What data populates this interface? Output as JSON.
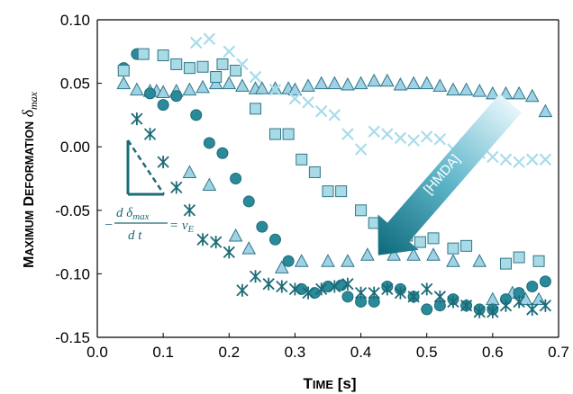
{
  "chart_data": {
    "type": "scatter",
    "title": "",
    "xlabel": "TIME [s]",
    "ylabel": "MAXIMUM DEFORMATION δmax",
    "xlim": [
      0.0,
      0.7
    ],
    "ylim": [
      -0.15,
      0.1
    ],
    "xticks": [
      "0.0",
      "0.1",
      "0.2",
      "0.3",
      "0.4",
      "0.5",
      "0.6",
      "0.7"
    ],
    "yticks": [
      "0.10",
      "0.05",
      "0.00",
      "-0.05",
      "-0.10",
      "-0.15"
    ],
    "xtick_values": [
      0,
      0.1,
      0.2,
      0.3,
      0.4,
      0.5,
      0.6,
      0.7
    ],
    "ytick_values": [
      0.1,
      0.05,
      0.0,
      -0.05,
      -0.1,
      -0.15
    ],
    "grid": false,
    "legend": "none",
    "series": [
      {
        "marker": "triangle",
        "fill": "#9fd2e4",
        "stroke": "#2f7688",
        "points": [
          [
            0.04,
            0.05
          ],
          [
            0.06,
            0.045
          ],
          [
            0.08,
            0.044
          ],
          [
            0.09,
            0.044
          ],
          [
            0.1,
            0.043
          ],
          [
            0.12,
            0.044
          ],
          [
            0.14,
            0.045
          ],
          [
            0.16,
            0.047
          ],
          [
            0.18,
            0.05
          ],
          [
            0.2,
            0.05
          ],
          [
            0.22,
            0.048
          ],
          [
            0.24,
            0.046
          ],
          [
            0.25,
            0.046
          ],
          [
            0.27,
            0.046
          ],
          [
            0.29,
            0.046
          ],
          [
            0.3,
            0.045
          ],
          [
            0.32,
            0.048
          ],
          [
            0.34,
            0.05
          ],
          [
            0.36,
            0.05
          ],
          [
            0.38,
            0.049
          ],
          [
            0.4,
            0.05
          ],
          [
            0.42,
            0.052
          ],
          [
            0.44,
            0.052
          ],
          [
            0.46,
            0.049
          ],
          [
            0.48,
            0.05
          ],
          [
            0.5,
            0.05
          ],
          [
            0.52,
            0.048
          ],
          [
            0.54,
            0.045
          ],
          [
            0.56,
            0.045
          ],
          [
            0.58,
            0.044
          ],
          [
            0.6,
            0.042
          ],
          [
            0.62,
            0.042
          ],
          [
            0.64,
            0.042
          ],
          [
            0.66,
            0.04
          ],
          [
            0.68,
            0.028
          ],
          [
            0.14,
            -0.02
          ],
          [
            0.17,
            -0.03
          ],
          [
            0.21,
            -0.07
          ],
          [
            0.23,
            -0.08
          ],
          [
            0.28,
            -0.095
          ],
          [
            0.31,
            -0.09
          ],
          [
            0.35,
            -0.09
          ],
          [
            0.38,
            -0.09
          ],
          [
            0.41,
            -0.085
          ],
          [
            0.45,
            -0.085
          ],
          [
            0.48,
            -0.085
          ],
          [
            0.51,
            -0.085
          ],
          [
            0.54,
            -0.09
          ],
          [
            0.58,
            -0.09
          ],
          [
            0.6,
            -0.12
          ],
          [
            0.63,
            -0.115
          ],
          [
            0.65,
            -0.12
          ],
          [
            0.67,
            -0.12
          ]
        ]
      },
      {
        "marker": "circle",
        "fill": "#2a8a9a",
        "stroke": "#1c6b78",
        "points": [
          [
            0.04,
            0.062
          ],
          [
            0.06,
            0.073
          ],
          [
            0.08,
            0.042
          ],
          [
            0.1,
            0.033
          ],
          [
            0.12,
            0.04
          ],
          [
            0.15,
            0.025
          ],
          [
            0.17,
            0.003
          ],
          [
            0.19,
            -0.005
          ],
          [
            0.21,
            -0.025
          ],
          [
            0.23,
            -0.043
          ],
          [
            0.25,
            -0.063
          ],
          [
            0.27,
            -0.073
          ],
          [
            0.29,
            -0.09
          ],
          [
            0.31,
            -0.112
          ],
          [
            0.33,
            -0.115
          ],
          [
            0.35,
            -0.11
          ],
          [
            0.37,
            -0.109
          ],
          [
            0.38,
            -0.118
          ],
          [
            0.4,
            -0.122
          ],
          [
            0.42,
            -0.122
          ],
          [
            0.44,
            -0.11
          ],
          [
            0.46,
            -0.112
          ],
          [
            0.48,
            -0.118
          ],
          [
            0.5,
            -0.128
          ],
          [
            0.52,
            -0.125
          ],
          [
            0.54,
            -0.12
          ],
          [
            0.56,
            -0.125
          ],
          [
            0.58,
            -0.128
          ],
          [
            0.6,
            -0.128
          ],
          [
            0.62,
            -0.12
          ],
          [
            0.64,
            -0.115
          ],
          [
            0.66,
            -0.11
          ],
          [
            0.68,
            -0.106
          ]
        ]
      },
      {
        "marker": "square",
        "fill": "#a8dbe6",
        "stroke": "#2f7688",
        "points": [
          [
            0.04,
            0.06
          ],
          [
            0.07,
            0.073
          ],
          [
            0.1,
            0.072
          ],
          [
            0.12,
            0.065
          ],
          [
            0.14,
            0.062
          ],
          [
            0.16,
            0.063
          ],
          [
            0.18,
            0.055
          ],
          [
            0.19,
            0.065
          ],
          [
            0.21,
            0.06
          ],
          [
            0.24,
            0.03
          ],
          [
            0.27,
            0.01
          ],
          [
            0.29,
            0.01
          ],
          [
            0.31,
            -0.01
          ],
          [
            0.33,
            -0.02
          ],
          [
            0.35,
            -0.035
          ],
          [
            0.37,
            -0.035
          ],
          [
            0.4,
            -0.05
          ],
          [
            0.42,
            -0.06
          ],
          [
            0.45,
            -0.07
          ],
          [
            0.47,
            -0.07
          ],
          [
            0.49,
            -0.075
          ],
          [
            0.51,
            -0.072
          ],
          [
            0.54,
            -0.08
          ],
          [
            0.56,
            -0.078
          ],
          [
            0.62,
            -0.092
          ],
          [
            0.64,
            -0.087
          ],
          [
            0.67,
            -0.09
          ]
        ]
      },
      {
        "marker": "x",
        "stroke": "#a9dcea",
        "points": [
          [
            0.15,
            0.082
          ],
          [
            0.17,
            0.085
          ],
          [
            0.2,
            0.075
          ],
          [
            0.22,
            0.065
          ],
          [
            0.24,
            0.055
          ],
          [
            0.27,
            0.045
          ],
          [
            0.3,
            0.038
          ],
          [
            0.32,
            0.035
          ],
          [
            0.34,
            0.028
          ],
          [
            0.36,
            0.025
          ],
          [
            0.38,
            0.01
          ],
          [
            0.4,
            -0.002
          ],
          [
            0.42,
            0.012
          ],
          [
            0.44,
            0.01
          ],
          [
            0.46,
            0.007
          ],
          [
            0.48,
            0.005
          ],
          [
            0.5,
            0.008
          ],
          [
            0.52,
            0.006
          ],
          [
            0.54,
            -0.002
          ],
          [
            0.56,
            0.003
          ],
          [
            0.58,
            -0.005
          ],
          [
            0.6,
            -0.008
          ],
          [
            0.62,
            -0.01
          ],
          [
            0.64,
            -0.012
          ],
          [
            0.66,
            -0.01
          ],
          [
            0.68,
            -0.01
          ]
        ]
      },
      {
        "marker": "asterisk",
        "stroke": "#1c6b78",
        "points": [
          [
            0.06,
            0.022
          ],
          [
            0.08,
            0.01
          ],
          [
            0.1,
            -0.012
          ],
          [
            0.12,
            -0.032
          ],
          [
            0.14,
            -0.05
          ],
          [
            0.16,
            -0.073
          ],
          [
            0.18,
            -0.075
          ],
          [
            0.2,
            -0.083
          ],
          [
            0.22,
            -0.113
          ],
          [
            0.24,
            -0.102
          ],
          [
            0.26,
            -0.108
          ],
          [
            0.28,
            -0.11
          ],
          [
            0.3,
            -0.112
          ],
          [
            0.32,
            -0.115
          ],
          [
            0.34,
            -0.112
          ],
          [
            0.36,
            -0.11
          ],
          [
            0.38,
            -0.108
          ],
          [
            0.4,
            -0.115
          ],
          [
            0.42,
            -0.115
          ],
          [
            0.44,
            -0.112
          ],
          [
            0.46,
            -0.115
          ],
          [
            0.48,
            -0.118
          ],
          [
            0.5,
            -0.112
          ],
          [
            0.52,
            -0.118
          ],
          [
            0.54,
            -0.122
          ],
          [
            0.56,
            -0.125
          ],
          [
            0.58,
            -0.13
          ],
          [
            0.6,
            -0.13
          ],
          [
            0.62,
            -0.125
          ],
          [
            0.64,
            -0.122
          ],
          [
            0.66,
            -0.128
          ],
          [
            0.68,
            -0.125
          ]
        ]
      }
    ],
    "annotations": {
      "arrow_label": "[HMDA]",
      "formula": "−d δmax / d t = vE"
    }
  }
}
